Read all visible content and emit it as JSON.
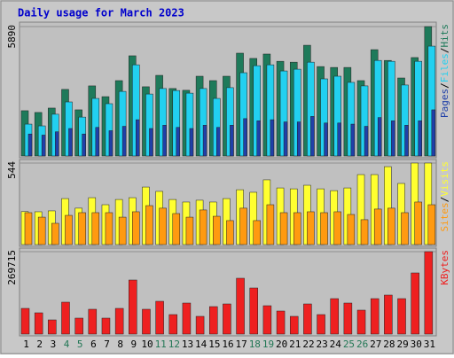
{
  "title": "Daily usage for March 2023",
  "legend_separator": "/",
  "chart_data": [
    {
      "type": "bar",
      "ylim": [
        0,
        5890
      ],
      "yticks": [
        5890
      ],
      "series": [
        {
          "name": "Hits",
          "color": "#1e7a5a",
          "values": [
            2060,
            1980,
            2180,
            3030,
            2100,
            3190,
            2700,
            3430,
            4560,
            3150,
            3670,
            3070,
            2990,
            3630,
            3430,
            3630,
            4680,
            4440,
            4640,
            4310,
            4270,
            5040,
            4070,
            4030,
            4030,
            3430,
            4840,
            4350,
            3550,
            4480,
            5890
          ]
        },
        {
          "name": "Files",
          "color": "#22d0f0",
          "values": [
            1450,
            1370,
            1900,
            2460,
            1770,
            2620,
            2380,
            2940,
            4150,
            2820,
            3070,
            2980,
            2860,
            3070,
            2620,
            3110,
            3790,
            4110,
            4150,
            3870,
            3950,
            4270,
            3510,
            3630,
            3350,
            3190,
            4350,
            4310,
            3230,
            4310,
            5000
          ]
        },
        {
          "name": "Pages",
          "color": "#2040a8",
          "values": [
            1000,
            950,
            1100,
            1250,
            1000,
            1300,
            1150,
            1350,
            1650,
            1250,
            1400,
            1300,
            1250,
            1400,
            1300,
            1400,
            1700,
            1600,
            1650,
            1550,
            1550,
            1800,
            1500,
            1500,
            1450,
            1350,
            1750,
            1600,
            1400,
            1600,
            2100
          ]
        }
      ]
    },
    {
      "type": "bar",
      "ylim": [
        0,
        544
      ],
      "yticks": [
        544
      ],
      "series": [
        {
          "name": "Visits",
          "color": "#ffff30",
          "values": [
            220,
            219,
            225,
            307,
            243,
            313,
            266,
            301,
            313,
            384,
            355,
            301,
            284,
            296,
            284,
            307,
            366,
            349,
            432,
            378,
            372,
            396,
            372,
            360,
            378,
            467,
            467,
            520,
            408,
            544,
            544
          ]
        },
        {
          "name": "Sites",
          "color": "#ff9a10",
          "values": [
            213,
            183,
            142,
            195,
            213,
            213,
            213,
            183,
            219,
            260,
            243,
            207,
            183,
            231,
            189,
            160,
            243,
            160,
            266,
            213,
            213,
            219,
            213,
            219,
            201,
            166,
            237,
            243,
            213,
            284,
            266
          ]
        }
      ]
    },
    {
      "type": "bar",
      "ylim": [
        0,
        269715
      ],
      "yticks": [
        269715
      ],
      "categories": [
        "1",
        "2",
        "3",
        "4",
        "5",
        "6",
        "7",
        "8",
        "9",
        "10",
        "11",
        "12",
        "13",
        "14",
        "15",
        "16",
        "17",
        "18",
        "19",
        "20",
        "21",
        "22",
        "23",
        "24",
        "25",
        "26",
        "27",
        "28",
        "29",
        "30",
        "31"
      ],
      "category_colors": [
        "#000000",
        "#000000",
        "#000000",
        "#227755",
        "#227755",
        "#000000",
        "#000000",
        "#000000",
        "#000000",
        "#000000",
        "#227755",
        "#227755",
        "#000000",
        "#000000",
        "#000000",
        "#000000",
        "#000000",
        "#227755",
        "#227755",
        "#000000",
        "#000000",
        "#000000",
        "#000000",
        "#000000",
        "#227755",
        "#227755",
        "#000000",
        "#000000",
        "#000000",
        "#000000",
        "#000000"
      ],
      "series": [
        {
          "name": "KBytes",
          "color": "#ee2020",
          "values": [
            84100,
            69600,
            46400,
            104400,
            52200,
            81200,
            52200,
            84100,
            176900,
            81200,
            107300,
            63800,
            101500,
            58000,
            89900,
            98600,
            182700,
            150800,
            92800,
            75400,
            58000,
            98600,
            63800,
            116000,
            101500,
            78300,
            116000,
            127600,
            116000,
            200100,
            269715
          ]
        }
      ]
    }
  ]
}
